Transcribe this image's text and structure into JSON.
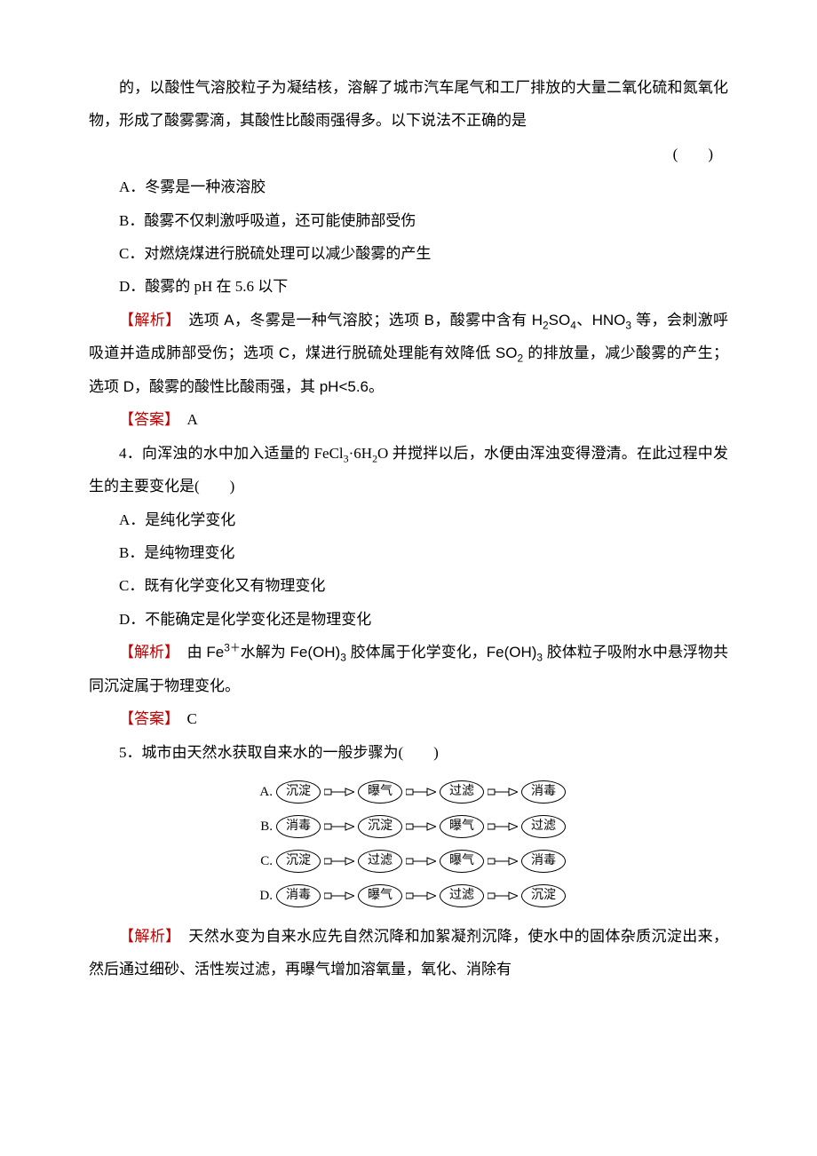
{
  "intro_paragraph": "的，以酸性气溶胶粒子为凝结核，溶解了城市汽车尾气和工厂排放的大量二氧化硫和氮氧化物，形成了酸雾雾滴，其酸性比酸雨强得多。以下说法不正确的是",
  "paren": "(　　)",
  "q3": {
    "optA": "A．冬雾是一种液溶胶",
    "optB": "B．酸雾不仅刺激呼吸道，还可能使肺部受伤",
    "optC": "C．对燃烧煤进行脱硫处理可以减少酸雾的产生",
    "optD": "D．酸雾的 pH 在 5.6 以下",
    "analysis_label": "【解析】",
    "analysis_pre": "　选项 A，冬雾是一种气溶胶；选项 B，酸雾中含有 H",
    "analysis_mid1": "SO",
    "analysis_mid2": "、HNO",
    "analysis_after": " 等，会刺激呼吸道并造成肺部受伤；选项 C，煤进行脱硫处理能有效降低 SO",
    "analysis_end": " 的排放量，减少酸雾的产生；选项 D，酸雾的酸性比酸雨强，其 pH<5.6。",
    "answer_label": "【答案】",
    "answer": "　A"
  },
  "q4": {
    "stem_pre": "4．向浑浊的水中加入适量的 FeCl",
    "stem_mid": "·6H",
    "stem_after": "O 并搅拌以后，水便由浑浊变得澄清。在此过程中发生的主要变化是(　　)",
    "optA": "A．是纯化学变化",
    "optB": "B．是纯物理变化",
    "optC": "C．既有化学变化又有物理变化",
    "optD": "D．不能确定是化学变化还是物理变化",
    "analysis_label": "【解析】",
    "analysis_pre": "　由 Fe",
    "analysis_mid1": "水解为 Fe(OH)",
    "analysis_mid2": " 胶体属于化学变化，Fe(OH)",
    "analysis_end": " 胶体粒子吸附水中悬浮物共同沉淀属于物理变化。",
    "answer_label": "【答案】",
    "answer": "　C"
  },
  "q5": {
    "stem": "5．城市由天然水获取自来水的一般步骤为(　　)",
    "flows": [
      {
        "label": "A.",
        "nodes": [
          "沉淀",
          "曝气",
          "过滤",
          "消毒"
        ]
      },
      {
        "label": "B.",
        "nodes": [
          "消毒",
          "沉淀",
          "曝气",
          "过滤"
        ]
      },
      {
        "label": "C.",
        "nodes": [
          "沉淀",
          "过滤",
          "曝气",
          "消毒"
        ]
      },
      {
        "label": "D.",
        "nodes": [
          "消毒",
          "曝气",
          "过滤",
          "沉淀"
        ]
      }
    ],
    "analysis_label": "【解析】",
    "analysis": "　天然水变为自来水应先自然沉降和加絮凝剂沉降，使水中的固体杂质沉淀出来，然后通过细砂、活性炭过滤，再曝气增加溶氧量，氧化、消除有"
  },
  "colors": {
    "text": "#000000",
    "label_red": "#c00000",
    "background": "#ffffff"
  }
}
